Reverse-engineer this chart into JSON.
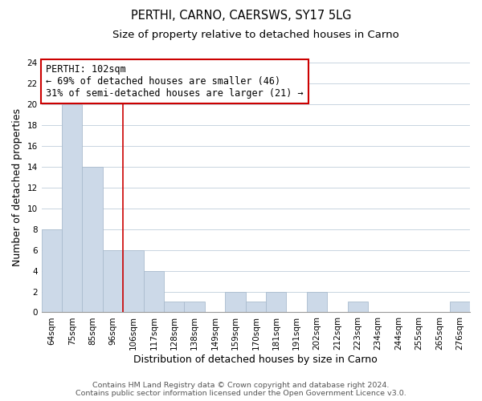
{
  "title": "PERTHI, CARNO, CAERSWS, SY17 5LG",
  "subtitle": "Size of property relative to detached houses in Carno",
  "xlabel": "Distribution of detached houses by size in Carno",
  "ylabel": "Number of detached properties",
  "bin_labels": [
    "64sqm",
    "75sqm",
    "85sqm",
    "96sqm",
    "106sqm",
    "117sqm",
    "128sqm",
    "138sqm",
    "149sqm",
    "159sqm",
    "170sqm",
    "181sqm",
    "191sqm",
    "202sqm",
    "212sqm",
    "223sqm",
    "234sqm",
    "244sqm",
    "255sqm",
    "265sqm",
    "276sqm"
  ],
  "bar_values": [
    8,
    20,
    14,
    6,
    6,
    4,
    1,
    1,
    0,
    2,
    1,
    2,
    0,
    2,
    0,
    1,
    0,
    0,
    0,
    0,
    1
  ],
  "bar_color": "#ccd9e8",
  "bar_edge_color": "#aabcce",
  "ylim": [
    0,
    24
  ],
  "yticks": [
    0,
    2,
    4,
    6,
    8,
    10,
    12,
    14,
    16,
    18,
    20,
    22,
    24
  ],
  "vline_x": 3.5,
  "vline_color": "#cc0000",
  "annotation_text": "PERTHI: 102sqm\n← 69% of detached houses are smaller (46)\n31% of semi-detached houses are larger (21) →",
  "annotation_box_color": "#ffffff",
  "annotation_box_edge": "#cc0000",
  "footer_line1": "Contains HM Land Registry data © Crown copyright and database right 2024.",
  "footer_line2": "Contains public sector information licensed under the Open Government Licence v3.0.",
  "grid_color": "#c8d4e0",
  "background_color": "#ffffff",
  "title_fontsize": 10.5,
  "subtitle_fontsize": 9.5,
  "axis_label_fontsize": 9,
  "tick_fontsize": 7.5,
  "annotation_fontsize": 8.5,
  "footer_fontsize": 6.8
}
